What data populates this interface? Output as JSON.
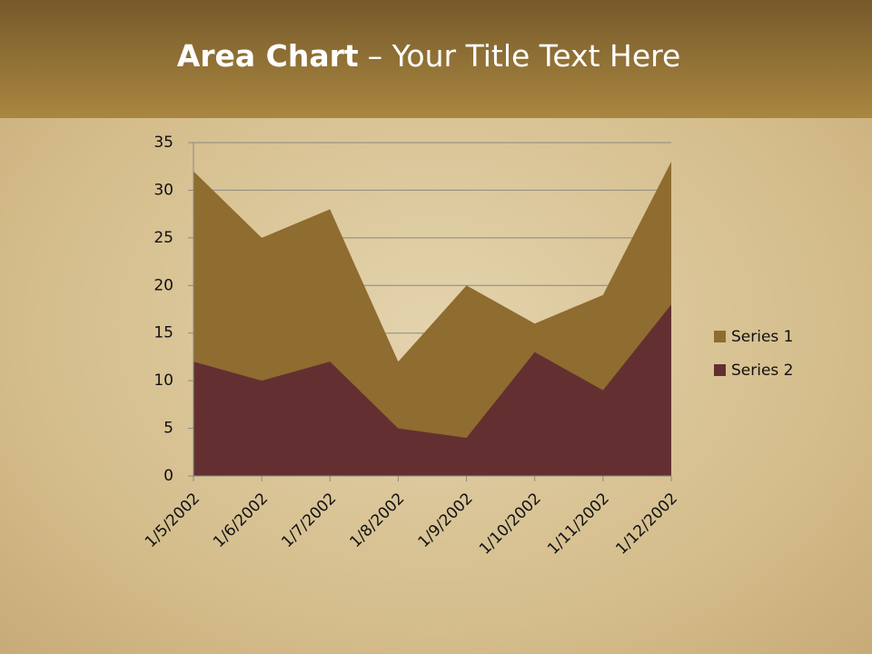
{
  "chart_data": {
    "type": "area",
    "title": "Area Chart",
    "subtitle": "– Your Title Text Here",
    "categories": [
      "1/5/2002",
      "1/6/2002",
      "1/7/2002",
      "1/8/2002",
      "1/9/2002",
      "1/10/2002",
      "1/11/2002",
      "1/12/2002"
    ],
    "series": [
      {
        "name": "Series 1",
        "color": "#8f6c2f",
        "values": [
          32,
          25,
          28,
          12,
          20,
          16,
          19,
          33
        ]
      },
      {
        "name": "Series 2",
        "color": "#642f31",
        "values": [
          12,
          10,
          12,
          5,
          4,
          13,
          9,
          18
        ]
      }
    ],
    "ylim": [
      0,
      35
    ],
    "yticks": [
      0,
      5,
      10,
      15,
      20,
      25,
      30,
      35
    ],
    "grid": true,
    "legend": "right"
  }
}
